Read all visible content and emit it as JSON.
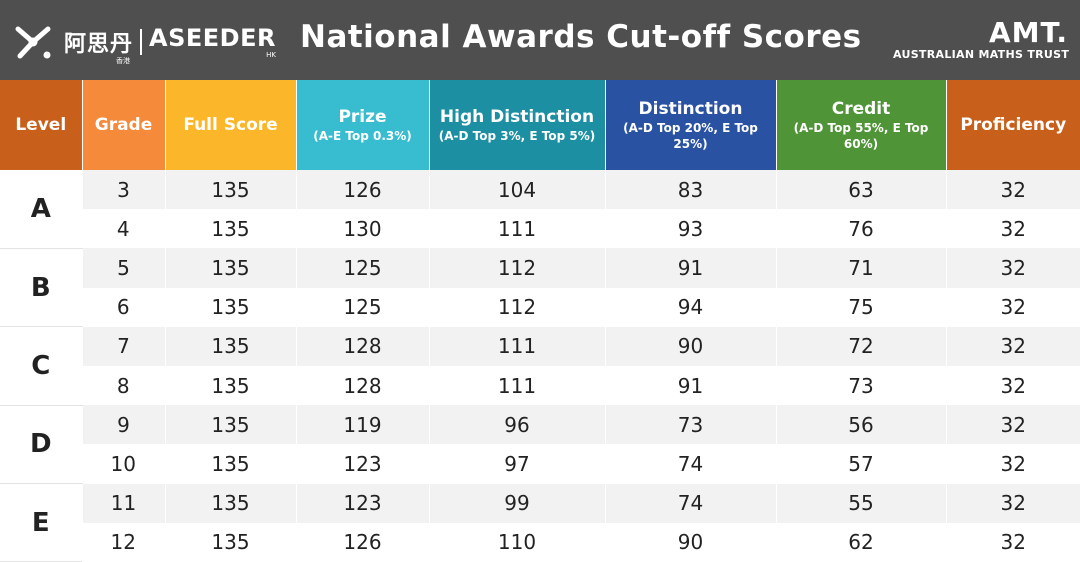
{
  "header": {
    "brand_cn": "阿思丹",
    "brand_sub_cn": "香港",
    "brand_en": "ASEEDER",
    "brand_en_sub": "HK",
    "title": "National Awards Cut-off Scores",
    "amt_mark": "AMT.",
    "amt_name": "AUSTRALIAN MATHS TRUST",
    "icons": [
      "aseeder-logo-icon"
    ]
  },
  "colors": {
    "header_bar": "#4f4f4f",
    "level": "#c8601c",
    "grade": "#f48a3a",
    "full_score": "#fbb62a",
    "prize": "#38bcd0",
    "high_distinction": "#1d8fa3",
    "distinction": "#2a52a2",
    "credit": "#4f9436",
    "proficiency": "#c8601c",
    "row_alt": "#f2f2f2"
  },
  "chart_data": {
    "type": "table",
    "title": "National Awards Cut-off Scores",
    "columns": [
      {
        "label": "Level",
        "sub": ""
      },
      {
        "label": "Grade",
        "sub": ""
      },
      {
        "label": "Full Score",
        "sub": ""
      },
      {
        "label": "Prize",
        "sub": "(A-E Top 0.3%)"
      },
      {
        "label": "High Distinction",
        "sub": "(A-D Top 3%, E Top 5%)"
      },
      {
        "label": "Distinction",
        "sub": "(A-D Top 20%, E Top 25%)"
      },
      {
        "label": "Credit",
        "sub": "(A-D Top 55%, E Top 60%)"
      },
      {
        "label": "Proficiency",
        "sub": ""
      }
    ],
    "levels": [
      {
        "level": "A",
        "rows": [
          [
            "3",
            "135",
            "126",
            "104",
            "83",
            "63",
            "32"
          ],
          [
            "4",
            "135",
            "130",
            "111",
            "93",
            "76",
            "32"
          ]
        ]
      },
      {
        "level": "B",
        "rows": [
          [
            "5",
            "135",
            "125",
            "112",
            "91",
            "71",
            "32"
          ],
          [
            "6",
            "135",
            "125",
            "112",
            "94",
            "75",
            "32"
          ]
        ]
      },
      {
        "level": "C",
        "rows": [
          [
            "7",
            "135",
            "128",
            "111",
            "90",
            "72",
            "32"
          ],
          [
            "8",
            "135",
            "128",
            "111",
            "91",
            "73",
            "32"
          ]
        ]
      },
      {
        "level": "D",
        "rows": [
          [
            "9",
            "135",
            "119",
            "96",
            "73",
            "56",
            "32"
          ],
          [
            "10",
            "135",
            "123",
            "97",
            "74",
            "57",
            "32"
          ]
        ]
      },
      {
        "level": "E",
        "rows": [
          [
            "11",
            "135",
            "123",
            "99",
            "74",
            "55",
            "32"
          ],
          [
            "12",
            "135",
            "126",
            "110",
            "90",
            "62",
            "32"
          ]
        ]
      }
    ]
  }
}
